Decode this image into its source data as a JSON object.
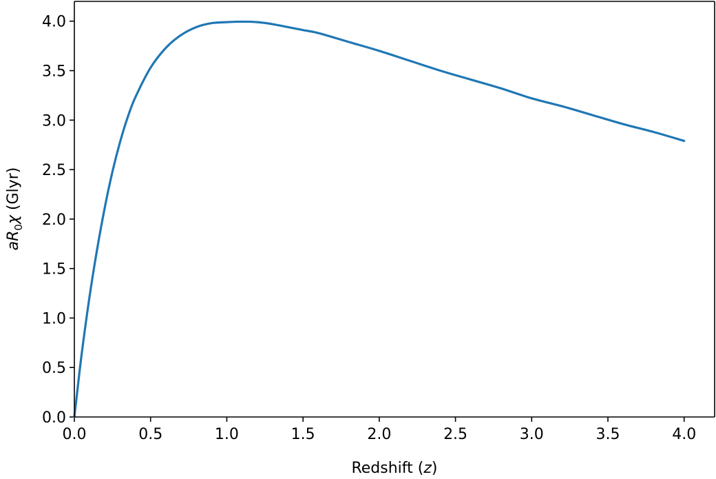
{
  "chart_data": {
    "type": "line",
    "title": "",
    "xlabel": {
      "prefix": "Redshift (",
      "var": "z",
      "suffix": ")"
    },
    "ylabel": {
      "a": "a",
      "R": "R",
      "sub": "0",
      "chi": "χ",
      "unit": " (Glyr)"
    },
    "xlim": [
      0.0,
      4.2
    ],
    "ylim": [
      0.0,
      4.2
    ],
    "xticks": [
      "0.0",
      "0.5",
      "1.0",
      "1.5",
      "2.0",
      "2.5",
      "3.0",
      "3.5",
      "4.0"
    ],
    "yticks": [
      "0.0",
      "0.5",
      "1.0",
      "1.5",
      "2.0",
      "2.5",
      "3.0",
      "3.5",
      "4.0"
    ],
    "grid": false,
    "series": [
      {
        "color": "#1f77b4",
        "x": [
          0.0,
          0.02,
          0.05,
          0.1,
          0.15,
          0.2,
          0.25,
          0.3,
          0.35,
          0.4,
          0.5,
          0.6,
          0.7,
          0.8,
          0.9,
          1.0,
          1.1,
          1.2,
          1.3,
          1.4,
          1.5,
          1.6,
          1.8,
          2.0,
          2.2,
          2.4,
          2.6,
          2.8,
          3.0,
          3.2,
          3.4,
          3.6,
          3.8,
          4.0
        ],
        "y": [
          0.0,
          0.27,
          0.66,
          1.22,
          1.7,
          2.12,
          2.48,
          2.78,
          3.03,
          3.23,
          3.53,
          3.73,
          3.86,
          3.94,
          3.98,
          3.99,
          3.995,
          3.99,
          3.97,
          3.94,
          3.91,
          3.88,
          3.79,
          3.7,
          3.6,
          3.5,
          3.41,
          3.32,
          3.22,
          3.14,
          3.05,
          2.96,
          2.88,
          2.79
        ]
      }
    ]
  }
}
